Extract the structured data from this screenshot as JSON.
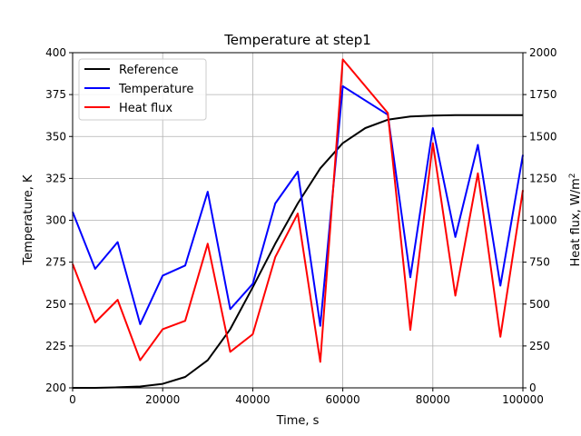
{
  "chart_data": {
    "type": "line",
    "title": "Temperature at step1",
    "xlabel": "Time, s",
    "ylabel": "Temperature, K",
    "y2label_main": "Heat flux, W/m",
    "y2label_sup": "2",
    "xlim": [
      0,
      100000
    ],
    "ylim": [
      200,
      400
    ],
    "y2lim": [
      0,
      2000
    ],
    "xticks": [
      0,
      20000,
      40000,
      60000,
      80000,
      100000
    ],
    "yticks": [
      200,
      225,
      250,
      275,
      300,
      325,
      350,
      375,
      400
    ],
    "y2ticks": [
      0,
      250,
      500,
      750,
      1000,
      1250,
      1500,
      1750,
      2000
    ],
    "grid": true,
    "legend_position": "top-left",
    "series": [
      {
        "name": "Reference",
        "axis": "left",
        "color": "#000000",
        "x": [
          0,
          5000,
          10000,
          15000,
          20000,
          25000,
          30000,
          35000,
          40000,
          45000,
          50000,
          55000,
          60000,
          65000,
          70000,
          75000,
          80000,
          85000,
          90000,
          95000,
          100000
        ],
        "y": [
          200,
          200,
          200.3,
          200.8,
          202.4,
          206.5,
          216.5,
          235,
          260,
          286,
          310,
          331,
          346,
          355,
          360,
          361.9,
          362.5,
          362.7,
          362.7,
          362.7,
          362.7
        ]
      },
      {
        "name": "Temperature",
        "axis": "left",
        "color": "#0000ff",
        "x": [
          0,
          5000,
          10000,
          15000,
          20000,
          25000,
          30000,
          35000,
          40000,
          45000,
          50000,
          55000,
          60000,
          70000,
          75000,
          80000,
          85000,
          90000,
          95000,
          100000
        ],
        "y": [
          305,
          271,
          287,
          238,
          267,
          273,
          317,
          247,
          262,
          310,
          329,
          237,
          380,
          363,
          266,
          355,
          290,
          345,
          261,
          339
        ]
      },
      {
        "name": "Heat flux",
        "axis": "right",
        "color": "#ff0000",
        "x": [
          0,
          5000,
          10000,
          15000,
          20000,
          25000,
          30000,
          35000,
          40000,
          45000,
          50000,
          55000,
          60000,
          70000,
          75000,
          80000,
          85000,
          90000,
          95000,
          100000
        ],
        "y": [
          740,
          390,
          525,
          165,
          350,
          400,
          860,
          215,
          320,
          780,
          1040,
          155,
          1960,
          1640,
          345,
          1460,
          550,
          1280,
          305,
          1180
        ]
      }
    ]
  }
}
